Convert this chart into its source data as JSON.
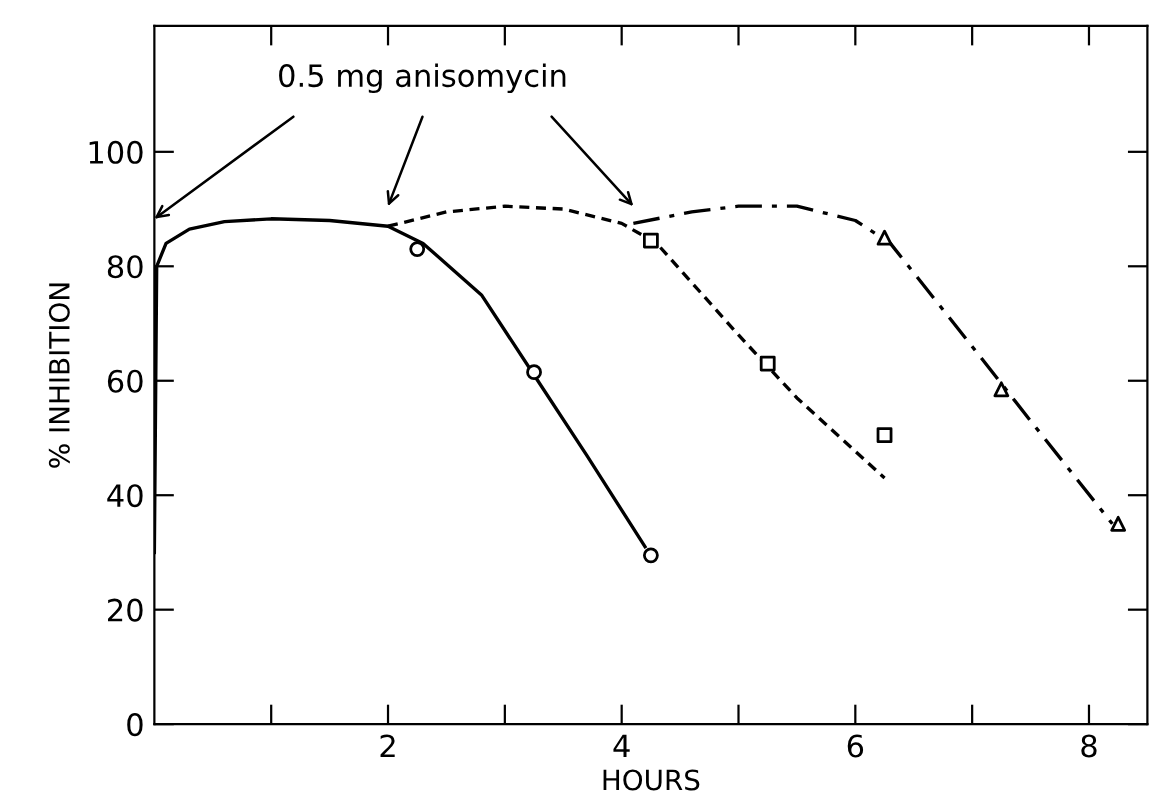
{
  "chart_data": {
    "type": "line",
    "xlabel": "HOURS",
    "ylabel": "% INHIBITION",
    "annotations": [
      "0.5 mg anisomycin"
    ],
    "xlim": [
      0,
      8.5
    ],
    "ylim": [
      0,
      122
    ],
    "xticks": [
      {
        "value": 1,
        "label": null
      },
      2,
      {
        "value": 3,
        "label": null
      },
      4,
      {
        "value": 5,
        "label": null
      },
      6,
      {
        "value": 7,
        "label": null
      },
      8
    ],
    "yticks": [
      0,
      20,
      40,
      60,
      80,
      100
    ],
    "grid": false,
    "legend": false,
    "series": [
      {
        "line_style": "solid",
        "marker": "none",
        "color": "#000000",
        "x": [
          0,
          0.02,
          0.1,
          0.3,
          0.6,
          1.0,
          1.5,
          2.0,
          2.3,
          2.8,
          3.25,
          3.7,
          4.2
        ],
        "values": [
          30,
          80,
          84,
          86.5,
          87.8,
          88.3,
          88,
          87,
          84,
          75,
          61,
          47,
          31
        ]
      },
      {
        "line_style": "dashed",
        "marker": "none",
        "color": "#000000",
        "x": [
          2.0,
          2.5,
          3.0,
          3.5,
          4.0,
          4.3,
          5.0,
          5.5,
          6.25
        ],
        "values": [
          87,
          89.5,
          90.5,
          90,
          87.5,
          84,
          68,
          57,
          43
        ]
      },
      {
        "line_style": "dashdot",
        "marker": "none",
        "color": "#000000",
        "x": [
          4.1,
          4.6,
          5.0,
          5.5,
          6.0,
          6.3,
          7.0,
          7.5,
          8.2
        ],
        "values": [
          87.5,
          89.5,
          90.5,
          90.5,
          88,
          84,
          66,
          53,
          35
        ]
      },
      {
        "type": "scatter",
        "marker": "circle",
        "color": "#000000",
        "x": [
          2.25,
          3.25,
          4.25
        ],
        "values": [
          83,
          61.5,
          29.5
        ]
      },
      {
        "type": "scatter",
        "marker": "square",
        "color": "#000000",
        "x": [
          4.25,
          5.25,
          6.25
        ],
        "values": [
          84.5,
          63,
          50.5
        ]
      },
      {
        "type": "scatter",
        "marker": "triangle",
        "color": "#000000",
        "x": [
          6.25,
          7.25,
          8.25
        ],
        "values": [
          85,
          58.5,
          35
        ]
      }
    ]
  }
}
